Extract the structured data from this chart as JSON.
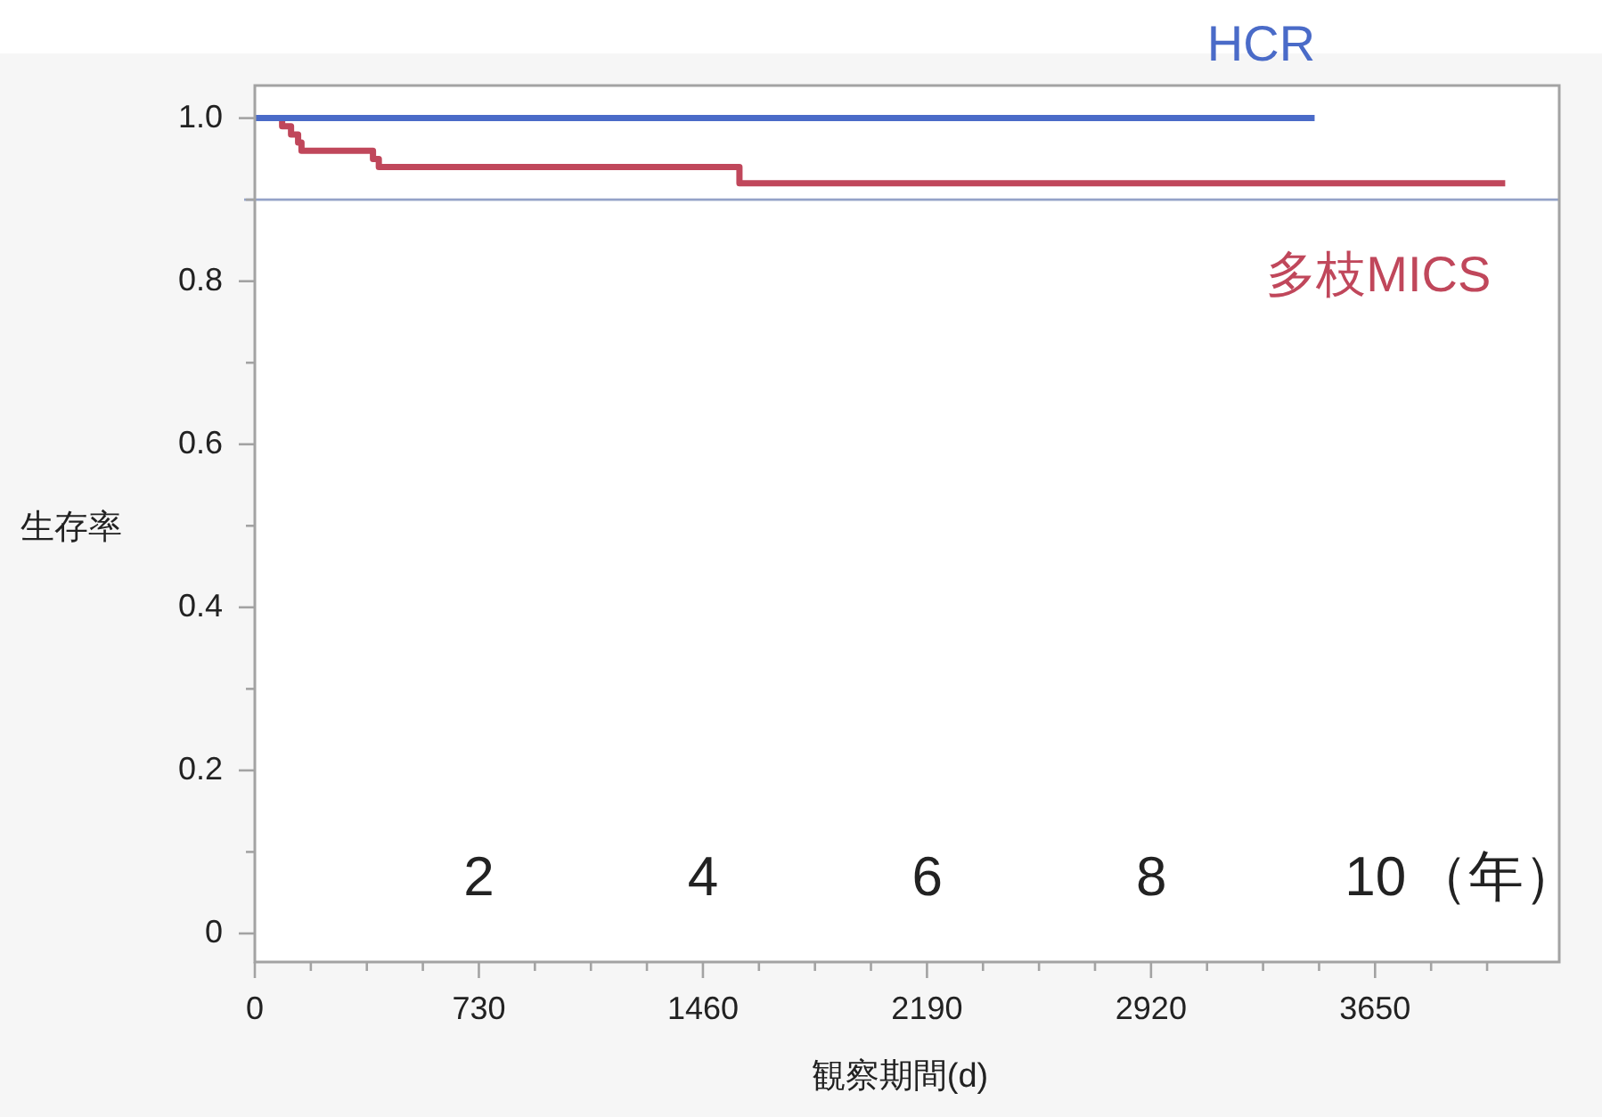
{
  "chart_data": {
    "type": "step",
    "xlabel": "観察期間(d)",
    "ylabel": "生存率",
    "x2label": "（年）",
    "xlim": [
      0,
      4250
    ],
    "ylim": [
      -0.035,
      1.04
    ],
    "xticks": [
      0,
      {
        "value": 182.5,
        "label": null
      },
      {
        "value": 365,
        "label": null
      },
      {
        "value": 547.5,
        "label": null
      },
      730,
      {
        "value": 912.5,
        "label": null
      },
      {
        "value": 1095,
        "label": null
      },
      {
        "value": 1277.5,
        "label": null
      },
      1460,
      {
        "value": 1642.5,
        "label": null
      },
      {
        "value": 1825,
        "label": null
      },
      {
        "value": 2007.5,
        "label": null
      },
      2190,
      {
        "value": 2372.5,
        "label": null
      },
      {
        "value": 2555,
        "label": null
      },
      {
        "value": 2737.5,
        "label": null
      },
      2920,
      {
        "value": 3102.5,
        "label": null
      },
      {
        "value": 3285,
        "label": null
      },
      {
        "value": 3467.5,
        "label": null
      },
      3650,
      {
        "value": 3832.5,
        "label": null
      },
      {
        "value": 4015,
        "label": null
      }
    ],
    "yticks": [
      0,
      {
        "value": 0.1,
        "label": null
      },
      0.2,
      {
        "value": 0.3,
        "label": null
      },
      0.4,
      {
        "value": 0.5,
        "label": null
      },
      0.6,
      {
        "value": 0.7,
        "label": null
      },
      0.8,
      {
        "value": 0.9,
        "label": null
      },
      {
        "value": 1,
        "label": "1.0"
      }
    ],
    "x2lim": [
      0,
      11.64
    ],
    "x2ticks": [
      2,
      4,
      6,
      8,
      10
    ],
    "series": [
      {
        "name": "HCR",
        "color": "#4a6bc8",
        "x": [
          0,
          3453
        ],
        "values": [
          1,
          1
        ]
      },
      {
        "name": "多枝MICS",
        "color": "#c0475b",
        "x": [
          0,
          89,
          118,
          141,
          152,
          385,
          404,
          1579,
          4074
        ],
        "values": [
          1,
          0.99,
          0.98,
          0.97,
          0.96,
          0.95,
          0.94,
          0.92,
          0.92
        ]
      }
    ],
    "ref_lines": [
      {
        "axis": "y",
        "value": 0.9,
        "color": "#95a3c8"
      }
    ],
    "grid": false,
    "marker": "none",
    "line_style": "solid"
  }
}
